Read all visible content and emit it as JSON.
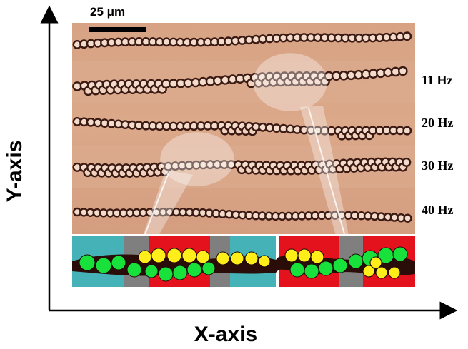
{
  "scale_bar": {
    "label": "25 μm"
  },
  "axes": {
    "x_label": "X-axis",
    "y_label": "Y-axis"
  },
  "rows": [
    {
      "frequency": ""
    },
    {
      "frequency": "11 Hz"
    },
    {
      "frequency": "20 Hz"
    },
    {
      "frequency": "30 Hz"
    },
    {
      "frequency": "40 Hz"
    }
  ],
  "colors": {
    "background_photo": "#d9a587",
    "particle": "#3a1a12",
    "cyan_region": "#44b2b6",
    "red_region": "#e4121c",
    "gray_region": "#7f7f7f",
    "green_particle": "#17e13a",
    "yellow_particle": "#ffee1a"
  }
}
